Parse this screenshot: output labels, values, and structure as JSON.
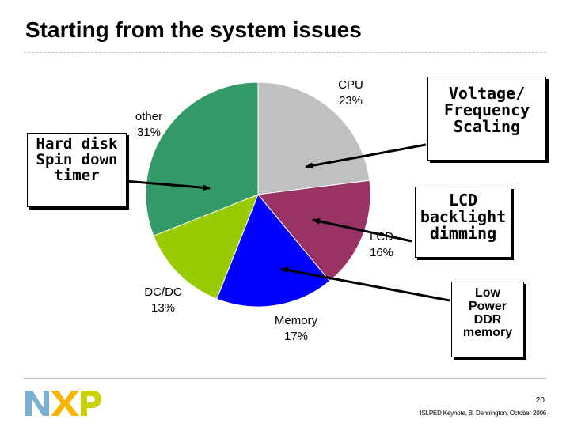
{
  "slide": {
    "title": "Starting from the system issues",
    "page_number": "20",
    "footer_credit": "ISLPED Keynote, B. Dennington, October 2006",
    "brand": "NXP"
  },
  "chart_data": {
    "type": "pie",
    "title": "",
    "start_angle_deg": 0,
    "direction": "clockwise",
    "slices": [
      {
        "name": "CPU",
        "label": "CPU",
        "value": 23,
        "value_label": "23%",
        "color": "#c0c0c0"
      },
      {
        "name": "LCD",
        "label": "LCD",
        "value": 16,
        "value_label": "16%",
        "color": "#993366"
      },
      {
        "name": "Memory",
        "label": "Memory",
        "value": 17,
        "value_label": "17%",
        "color": "#0000ff"
      },
      {
        "name": "DC/DC",
        "label": "DC/DC",
        "value": 13,
        "value_label": "13%",
        "color": "#99cc00"
      },
      {
        "name": "other",
        "label": "other",
        "value": 31,
        "value_label": "31%",
        "color": "#339966"
      }
    ]
  },
  "callouts": {
    "voltage": {
      "lines": [
        "Voltage/",
        "Frequency",
        "Scaling"
      ],
      "target": "CPU"
    },
    "lcd": {
      "lines": [
        "LCD",
        "backlight",
        "dimming"
      ],
      "target": "LCD"
    },
    "memory": {
      "lines": [
        "Low",
        "Power",
        "DDR",
        "memory"
      ],
      "target": "Memory"
    },
    "hdd": {
      "lines": [
        "Hard disk",
        "Spin down",
        "timer"
      ],
      "target": "other"
    }
  },
  "colors": {
    "nxp_blue": "#7bafd4",
    "nxp_orange": "#f9b500",
    "nxp_green": "#c9d200"
  }
}
